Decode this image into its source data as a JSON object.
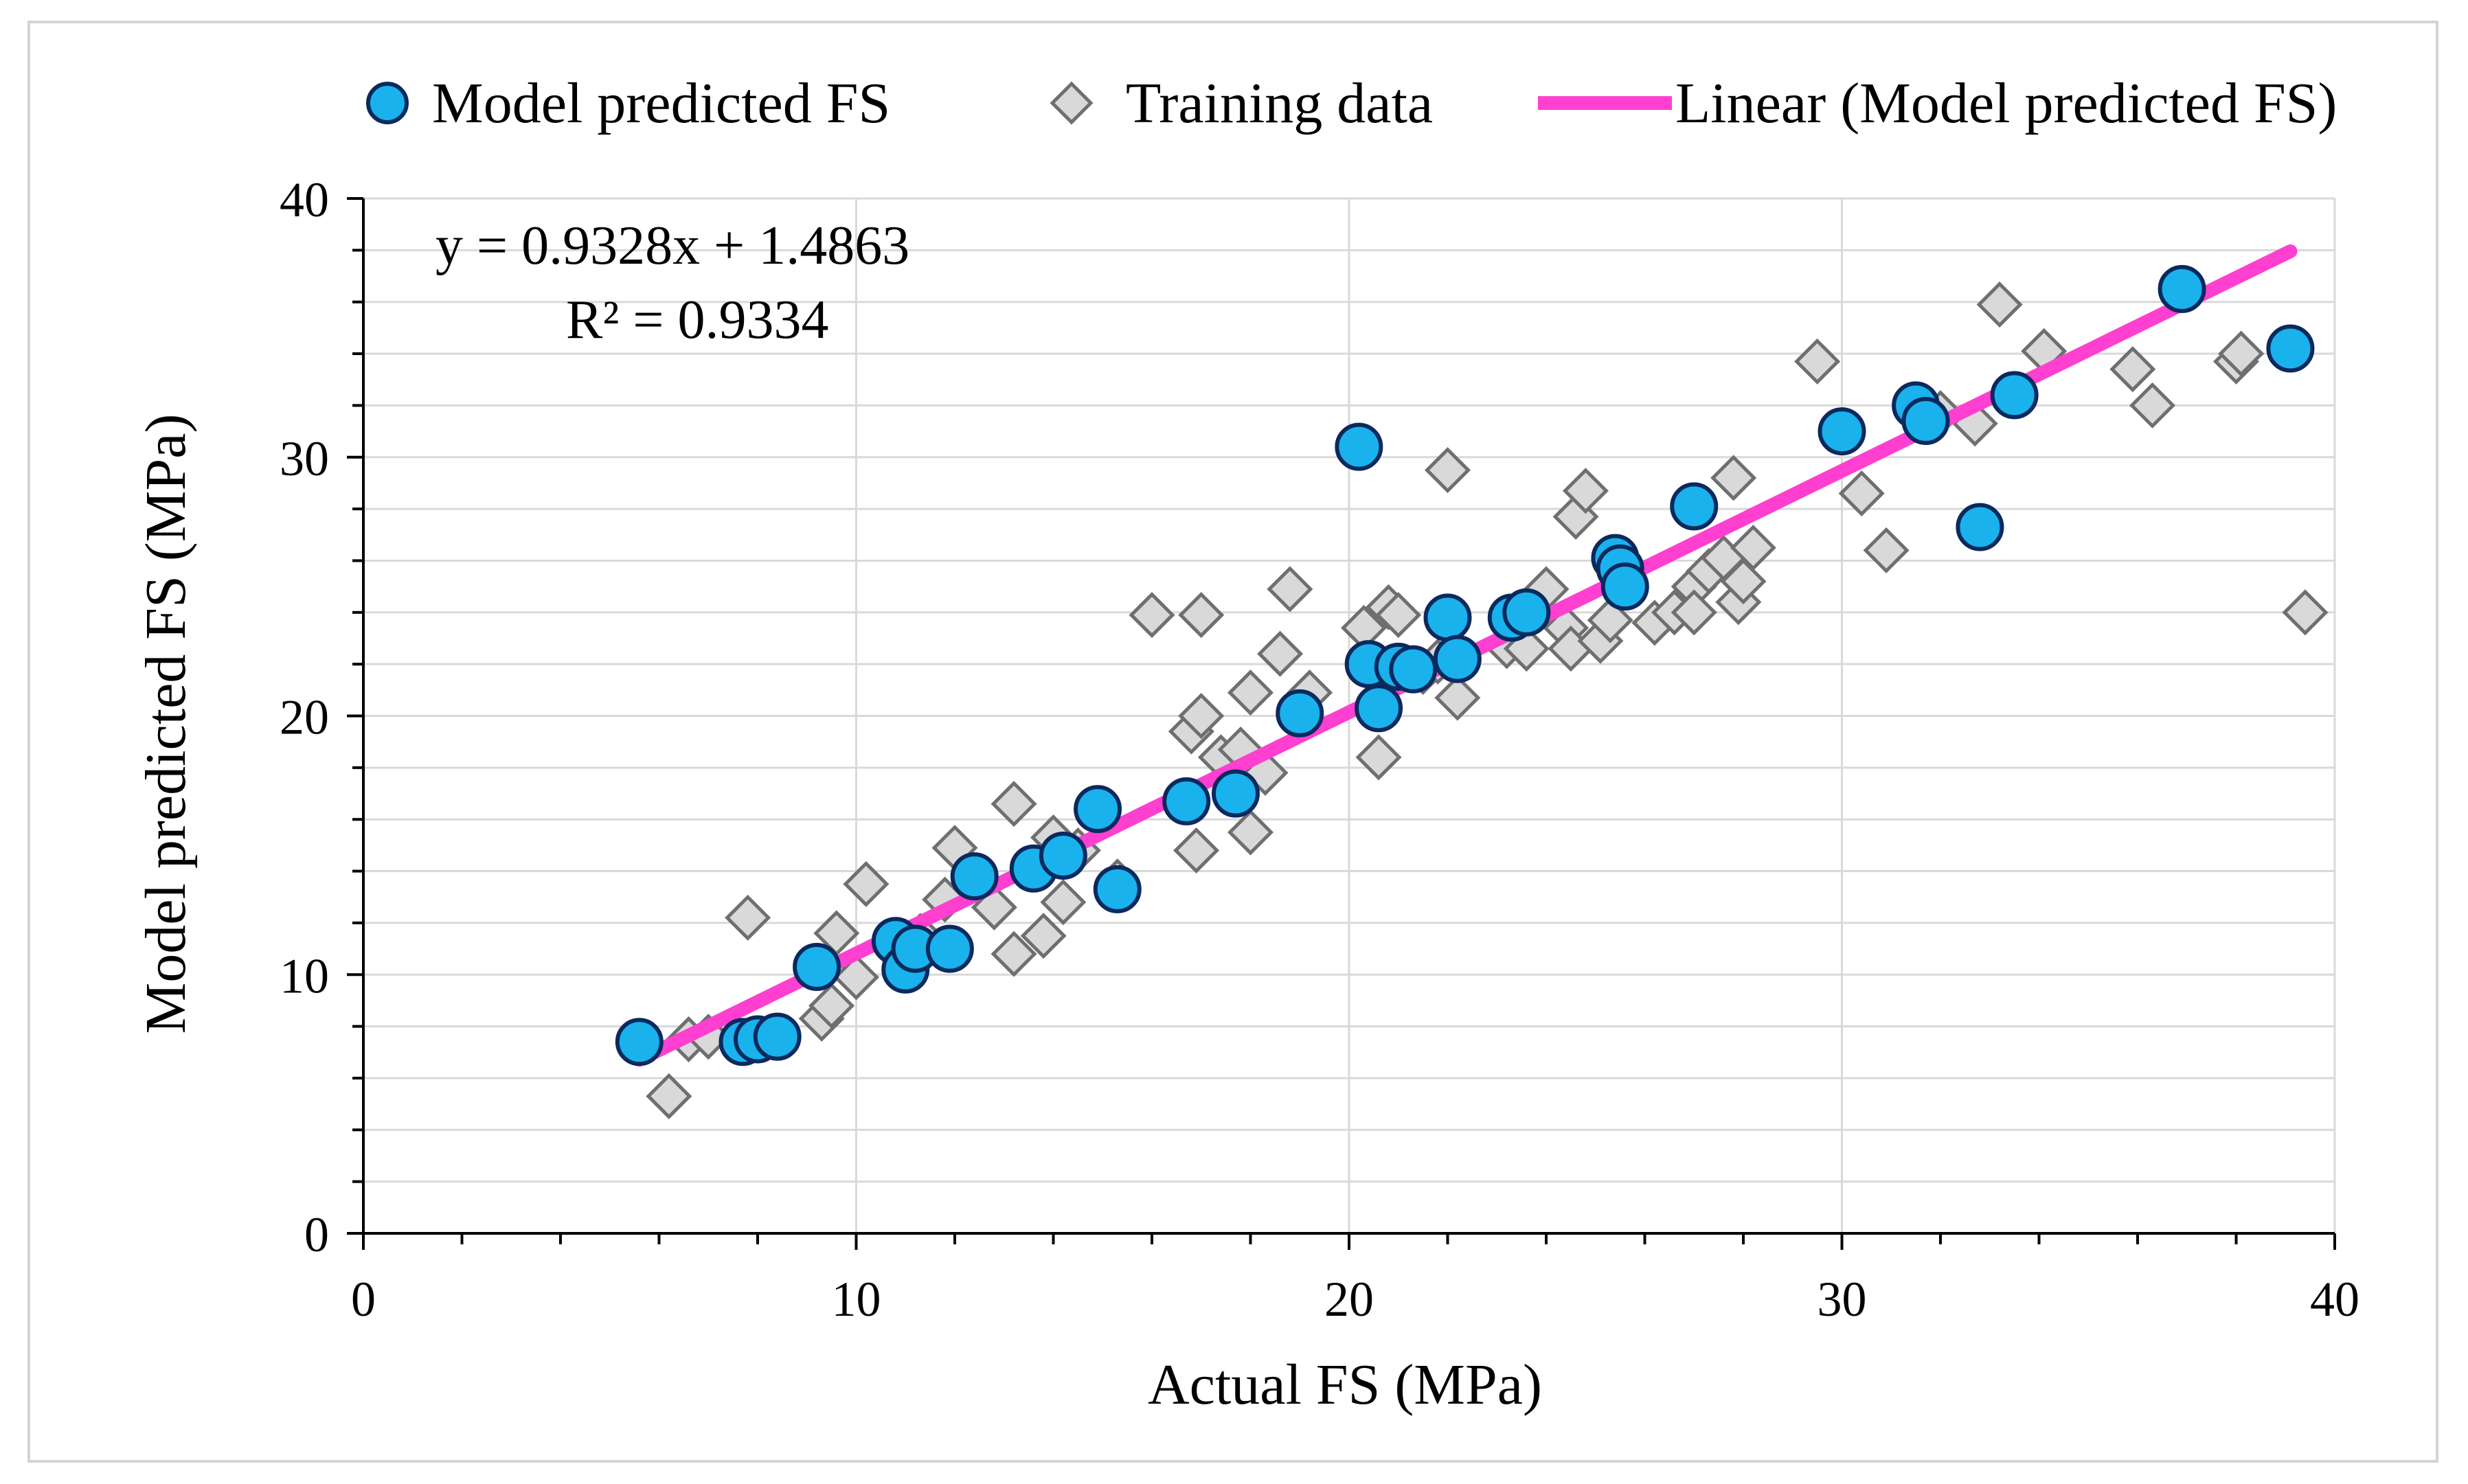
{
  "chart_data": {
    "type": "scatter",
    "title": "",
    "xlabel": "Actual FS (MPa)",
    "ylabel": "Model predicted FS (MPa)",
    "xlim": [
      0,
      40
    ],
    "ylim": [
      0,
      40
    ],
    "xticks": [
      "0",
      "10",
      "20",
      "30",
      "40"
    ],
    "yticks": [
      "0",
      "10",
      "20",
      "30",
      "40"
    ],
    "grid": true,
    "legend_position": "top",
    "legend": [
      {
        "label": "Model predicted FS",
        "marker": "circle"
      },
      {
        "label": "Training data",
        "marker": "diamond"
      },
      {
        "label": "Linear (Model predicted FS)",
        "marker": "line"
      }
    ],
    "annotations": {
      "equation": "y = 0.9328x + 1.4863",
      "r_squared": "R² = 0.9334"
    },
    "trendline": {
      "slope": 0.9328,
      "intercept": 1.4863,
      "x_range": [
        5.6,
        39.1
      ]
    },
    "series": [
      {
        "name": "Training data",
        "marker": "diamond",
        "color": "#d9d9d9",
        "points": [
          [
            6.2,
            5.3
          ],
          [
            6.6,
            7.5
          ],
          [
            7.0,
            7.6
          ],
          [
            7.8,
            12.2
          ],
          [
            9.3,
            8.3
          ],
          [
            9.5,
            8.8
          ],
          [
            9.6,
            11.6
          ],
          [
            10.0,
            9.9
          ],
          [
            10.2,
            13.5
          ],
          [
            11.3,
            11.5
          ],
          [
            11.8,
            12.9
          ],
          [
            12.0,
            14.9
          ],
          [
            12.8,
            12.6
          ],
          [
            13.2,
            10.8
          ],
          [
            13.2,
            16.6
          ],
          [
            13.8,
            11.5
          ],
          [
            14.0,
            15.3
          ],
          [
            14.2,
            12.8
          ],
          [
            14.5,
            14.8
          ],
          [
            15.3,
            13.6
          ],
          [
            16.0,
            23.9
          ],
          [
            16.8,
            19.4
          ],
          [
            16.9,
            14.8
          ],
          [
            17.0,
            20.0
          ],
          [
            17.0,
            23.9
          ],
          [
            17.4,
            18.4
          ],
          [
            17.8,
            18.7
          ],
          [
            18.0,
            20.9
          ],
          [
            18.0,
            15.5
          ],
          [
            18.3,
            17.8
          ],
          [
            18.6,
            22.4
          ],
          [
            18.8,
            24.9
          ],
          [
            19.2,
            20.9
          ],
          [
            20.3,
            23.4
          ],
          [
            20.6,
            18.4
          ],
          [
            20.8,
            24.2
          ],
          [
            21.0,
            23.9
          ],
          [
            21.5,
            21.7
          ],
          [
            21.8,
            22.1
          ],
          [
            22.0,
            29.5
          ],
          [
            22.2,
            20.7
          ],
          [
            23.2,
            22.7
          ],
          [
            23.6,
            22.6
          ],
          [
            24.0,
            24.9
          ],
          [
            24.4,
            23.4
          ],
          [
            24.5,
            22.6
          ],
          [
            24.6,
            27.7
          ],
          [
            24.8,
            28.7
          ],
          [
            25.1,
            22.9
          ],
          [
            25.3,
            23.7
          ],
          [
            26.2,
            23.6
          ],
          [
            26.6,
            24.0
          ],
          [
            27.0,
            25.0
          ],
          [
            27.0,
            24.0
          ],
          [
            27.3,
            25.6
          ],
          [
            27.6,
            26.1
          ],
          [
            27.8,
            29.2
          ],
          [
            27.9,
            24.4
          ],
          [
            28.0,
            25.2
          ],
          [
            28.2,
            26.5
          ],
          [
            29.5,
            33.7
          ],
          [
            30.4,
            28.6
          ],
          [
            30.9,
            26.4
          ],
          [
            32.0,
            31.7
          ],
          [
            32.7,
            31.3
          ],
          [
            33.2,
            35.9
          ],
          [
            34.1,
            34.1
          ],
          [
            35.9,
            33.4
          ],
          [
            36.3,
            32.0
          ],
          [
            38.0,
            33.7
          ],
          [
            38.1,
            34.0
          ],
          [
            39.4,
            24.0
          ]
        ]
      },
      {
        "name": "Model predicted FS",
        "marker": "circle",
        "color": "#1ab2ed",
        "points": [
          [
            5.6,
            7.4
          ],
          [
            7.7,
            7.4
          ],
          [
            8.0,
            7.5
          ],
          [
            8.4,
            7.6
          ],
          [
            9.2,
            10.3
          ],
          [
            10.8,
            11.3
          ],
          [
            11.0,
            10.2
          ],
          [
            11.2,
            11.0
          ],
          [
            11.9,
            11.0
          ],
          [
            12.4,
            13.8
          ],
          [
            13.6,
            14.1
          ],
          [
            14.2,
            14.6
          ],
          [
            14.9,
            16.4
          ],
          [
            15.3,
            13.3
          ],
          [
            16.7,
            16.7
          ],
          [
            17.7,
            17.0
          ],
          [
            19.0,
            20.1
          ],
          [
            20.2,
            30.4
          ],
          [
            20.4,
            22.0
          ],
          [
            20.6,
            20.3
          ],
          [
            21.0,
            21.9
          ],
          [
            21.3,
            21.8
          ],
          [
            22.0,
            23.8
          ],
          [
            22.2,
            22.2
          ],
          [
            23.3,
            23.8
          ],
          [
            23.6,
            24.0
          ],
          [
            25.4,
            26.1
          ],
          [
            25.5,
            25.7
          ],
          [
            25.6,
            25.0
          ],
          [
            27.0,
            28.1
          ],
          [
            30.0,
            31.0
          ],
          [
            31.5,
            32.0
          ],
          [
            31.7,
            31.4
          ],
          [
            32.8,
            27.3
          ],
          [
            33.5,
            32.4
          ],
          [
            36.9,
            36.5
          ],
          [
            39.1,
            34.2
          ]
        ]
      }
    ]
  },
  "colors": {
    "circle_fill": "#1ab2ed",
    "circle_stroke": "#0a2a5e",
    "diamond_fill": "#d9d9d9",
    "diamond_stroke": "#6f6f6f",
    "trendline": "#ff3fd0",
    "grid": "#d9d9d9",
    "axis": "#000000",
    "frame": "#d4d4d4"
  }
}
